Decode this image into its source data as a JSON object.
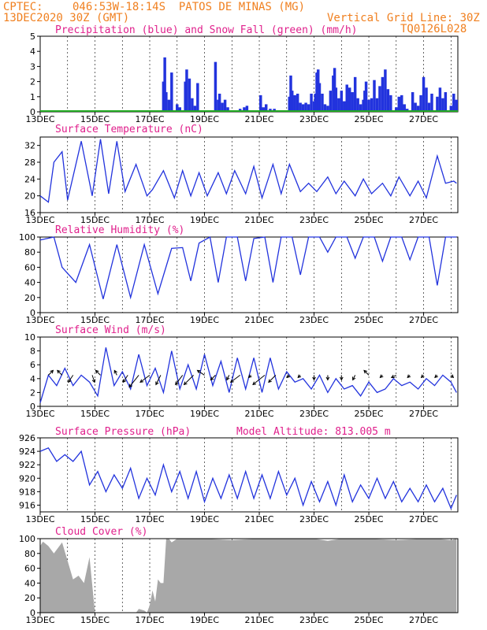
{
  "header": {
    "source": "CPTEC:",
    "location": "046:53W-18:14S  PATOS DE MINAS (MG)",
    "run": "13DEC2020 30Z (GMT)",
    "grid_note": "Vertical Grid Line: 30Z",
    "model": "TQ0126L028"
  },
  "colors": {
    "header": "#f08020",
    "title": "#e0208c",
    "line": "#2233dd",
    "precip": "#2233dd",
    "snow": "#22aa22",
    "cloud": "#a8a8a8"
  },
  "date_labels": [
    "13DEC",
    "15DEC",
    "17DEC",
    "19DEC",
    "21DEC",
    "23DEC",
    "25DEC",
    "27DEC"
  ],
  "chart_data": [
    {
      "id": "precip",
      "type": "bar",
      "title": "Precipitation (blue) and Snow Fall (green) (mm/h)",
      "ylim": [
        0,
        5
      ],
      "yticks": [
        0,
        1,
        2,
        3,
        4,
        5
      ],
      "x_start_day": 13.0,
      "x_end_day": 28.25,
      "series": [
        {
          "name": "Precipitation",
          "x": [
            17.5,
            17.55,
            17.6,
            17.7,
            17.8,
            18.0,
            18.1,
            18.3,
            18.35,
            18.45,
            18.55,
            18.65,
            18.75,
            19.4,
            19.5,
            19.55,
            19.65,
            19.75,
            19.85,
            20.3,
            20.45,
            20.55,
            21.05,
            21.15,
            21.25,
            21.4,
            21.55,
            22.1,
            22.15,
            22.2,
            22.3,
            22.4,
            22.5,
            22.6,
            22.7,
            22.8,
            22.9,
            23.0,
            23.05,
            23.1,
            23.15,
            23.2,
            23.3,
            23.4,
            23.5,
            23.6,
            23.7,
            23.75,
            23.8,
            23.9,
            24.0,
            24.1,
            24.2,
            24.3,
            24.4,
            24.5,
            24.6,
            24.7,
            24.8,
            24.85,
            24.9,
            25.0,
            25.1,
            25.2,
            25.3,
            25.4,
            25.5,
            25.6,
            25.7,
            25.8,
            26.0,
            26.1,
            26.2,
            26.3,
            26.4,
            26.6,
            26.7,
            26.8,
            26.9,
            27.0,
            27.1,
            27.2,
            27.3,
            27.5,
            27.6,
            27.7,
            27.8,
            28.0,
            28.1,
            28.2
          ],
          "values": [
            2.0,
            3.6,
            1.3,
            0.8,
            2.6,
            0.5,
            0.3,
            2.0,
            2.8,
            2.2,
            0.9,
            0.4,
            1.9,
            3.3,
            0.8,
            1.2,
            0.6,
            0.8,
            0.3,
            0.2,
            0.3,
            0.4,
            1.1,
            0.3,
            0.5,
            0.2,
            0.2,
            1.0,
            2.4,
            1.4,
            1.1,
            1.2,
            0.6,
            0.5,
            0.6,
            0.5,
            1.2,
            0.7,
            1.2,
            2.6,
            2.8,
            1.9,
            1.2,
            0.5,
            0.4,
            1.4,
            2.4,
            2.9,
            1.6,
            0.9,
            1.4,
            0.7,
            1.8,
            1.6,
            1.3,
            2.3,
            0.9,
            0.5,
            0.8,
            1.4,
            2.0,
            0.8,
            0.9,
            2.1,
            0.9,
            1.7,
            2.3,
            2.8,
            1.5,
            1.1,
            0.3,
            1.0,
            1.1,
            0.5,
            0.2,
            1.3,
            0.6,
            0.4,
            1.1,
            2.3,
            1.6,
            0.6,
            1.2,
            1.0,
            1.6,
            0.9,
            1.3,
            0.4,
            1.2,
            0.8
          ]
        },
        {
          "name": "Snow Fall",
          "x": [
            13.0,
            28.25
          ],
          "values": [
            0,
            0
          ]
        }
      ]
    },
    {
      "id": "temp",
      "type": "line",
      "title": "Surface Temperature (nC)",
      "ylim": [
        16,
        34
      ],
      "yticks": [
        16,
        20,
        24,
        28,
        32
      ],
      "x": [
        13.0,
        13.3,
        13.5,
        13.8,
        14.0,
        14.5,
        14.9,
        15.2,
        15.5,
        15.8,
        16.1,
        16.5,
        16.9,
        17.1,
        17.5,
        17.9,
        18.2,
        18.5,
        18.8,
        19.1,
        19.5,
        19.8,
        20.1,
        20.5,
        20.8,
        21.1,
        21.5,
        21.8,
        22.1,
        22.5,
        22.8,
        23.1,
        23.5,
        23.8,
        24.1,
        24.5,
        24.8,
        25.1,
        25.5,
        25.8,
        26.1,
        26.5,
        26.8,
        27.1,
        27.5,
        27.8,
        28.1,
        28.2
      ],
      "values": [
        20,
        18.5,
        28,
        30.5,
        19,
        33,
        20,
        33.5,
        20.5,
        33,
        21,
        27.5,
        20,
        21.5,
        26,
        19.5,
        26,
        20,
        25.5,
        20,
        25.5,
        20.5,
        26,
        20.5,
        27,
        19.5,
        27.5,
        20.5,
        27.5,
        21,
        23,
        21,
        24.5,
        20.5,
        23.5,
        20,
        24,
        20.5,
        23,
        20,
        24.5,
        20,
        23.5,
        19.5,
        29.5,
        23,
        23.5,
        23
      ]
    },
    {
      "id": "rh",
      "type": "line",
      "title": "Relative Humidity (%)",
      "ylim": [
        0,
        100
      ],
      "yticks": [
        0,
        20,
        40,
        60,
        80,
        100
      ],
      "x": [
        13.0,
        13.5,
        13.8,
        14.3,
        14.8,
        15.3,
        15.8,
        16.3,
        16.8,
        17.3,
        17.8,
        18.2,
        18.5,
        18.8,
        19.2,
        19.5,
        19.8,
        20.2,
        20.5,
        20.8,
        21.2,
        21.5,
        21.8,
        22.2,
        22.5,
        22.8,
        23.2,
        23.5,
        23.8,
        24.2,
        24.5,
        24.8,
        25.2,
        25.5,
        25.8,
        26.2,
        26.5,
        26.8,
        27.2,
        27.5,
        27.8,
        28.2
      ],
      "values": [
        96,
        100,
        60,
        40,
        90,
        18,
        90,
        20,
        90,
        25,
        85,
        86,
        42,
        92,
        100,
        40,
        100,
        100,
        42,
        98,
        100,
        40,
        100,
        100,
        50,
        100,
        100,
        80,
        100,
        100,
        72,
        100,
        100,
        68,
        100,
        100,
        70,
        100,
        100,
        36,
        100,
        100
      ]
    },
    {
      "id": "wind",
      "type": "line",
      "title": "Surface Wind (m/s)",
      "ylim": [
        0,
        10
      ],
      "yticks": [
        0,
        2,
        4,
        6,
        8,
        10
      ],
      "x": [
        13.0,
        13.3,
        13.6,
        13.9,
        14.2,
        14.5,
        14.8,
        15.1,
        15.4,
        15.7,
        16.0,
        16.3,
        16.6,
        16.9,
        17.2,
        17.5,
        17.8,
        18.1,
        18.4,
        18.7,
        19.0,
        19.3,
        19.6,
        19.9,
        20.2,
        20.5,
        20.8,
        21.1,
        21.4,
        21.7,
        22.0,
        22.3,
        22.6,
        22.9,
        23.2,
        23.5,
        23.8,
        24.1,
        24.4,
        24.7,
        25.0,
        25.3,
        25.6,
        25.9,
        26.2,
        26.5,
        26.8,
        27.1,
        27.4,
        27.7,
        28.0,
        28.2
      ],
      "values": [
        0.5,
        4.5,
        3.0,
        5.5,
        3.0,
        4.5,
        3.5,
        1.5,
        8.5,
        3.0,
        5.0,
        2.5,
        7.5,
        3.0,
        5.5,
        2.0,
        8.0,
        2.5,
        6.0,
        2.5,
        7.5,
        3.0,
        6.5,
        2.0,
        7.0,
        2.5,
        7.0,
        2.0,
        7.0,
        2.5,
        5.0,
        3.5,
        4.0,
        2.5,
        4.5,
        2.0,
        4.0,
        2.5,
        3.0,
        1.5,
        3.5,
        2.0,
        2.5,
        4.0,
        3.0,
        3.5,
        2.5,
        4.0,
        3.0,
        4.5,
        3.5,
        2.0
      ],
      "arrows": {
        "x": [
          13.3,
          13.8,
          14.2,
          14.9,
          15.2,
          15.8,
          16.2,
          16.6,
          17.0,
          17.4,
          18.2,
          18.6,
          19.0,
          19.4,
          19.9,
          20.3,
          20.7,
          21.2,
          21.6,
          22.1,
          22.5,
          23.0,
          23.5,
          24.0,
          24.5,
          25.0,
          25.5,
          26.0,
          26.5,
          27.0,
          27.5,
          28.0
        ],
        "u": [
          2,
          -2,
          -2,
          1,
          -2,
          -1,
          -2,
          -4,
          -4,
          -2,
          -3,
          -4,
          -3,
          -2,
          -1,
          -4,
          -1,
          -5,
          -3,
          -1,
          -1,
          0,
          0,
          0,
          -1,
          -2,
          -1,
          -2,
          -1,
          -1,
          -1,
          1
        ],
        "v": [
          2,
          2,
          -3,
          -3,
          2,
          2,
          -3,
          -5,
          -3,
          -4,
          -4,
          -4,
          2,
          -2,
          -2,
          -3,
          -1,
          -4,
          -3,
          -1,
          -1,
          -2,
          -2,
          -2,
          -2,
          2,
          -1,
          -1,
          -1,
          -1,
          -1,
          -1
        ]
      }
    },
    {
      "id": "pres",
      "type": "line",
      "title": "Surface Pressure (hPa)",
      "subtitle": "Model Altitude: 813.005 m",
      "ylim": [
        915,
        926
      ],
      "yticks": [
        916,
        918,
        920,
        922,
        924,
        926
      ],
      "x": [
        13.0,
        13.3,
        13.6,
        13.9,
        14.2,
        14.5,
        14.8,
        15.1,
        15.4,
        15.7,
        16.0,
        16.3,
        16.6,
        16.9,
        17.2,
        17.5,
        17.8,
        18.1,
        18.4,
        18.7,
        19.0,
        19.3,
        19.6,
        19.9,
        20.2,
        20.5,
        20.8,
        21.1,
        21.4,
        21.7,
        22.0,
        22.3,
        22.6,
        22.9,
        23.2,
        23.5,
        23.8,
        24.1,
        24.4,
        24.7,
        25.0,
        25.3,
        25.6,
        25.9,
        26.2,
        26.5,
        26.8,
        27.1,
        27.4,
        27.7,
        28.0,
        28.2
      ],
      "values": [
        924,
        924.5,
        922.5,
        923.5,
        922.5,
        924,
        919,
        921,
        918,
        920.5,
        918.5,
        921.5,
        917,
        920,
        917.5,
        922,
        918,
        921,
        917,
        921,
        916.5,
        920,
        917,
        920.5,
        917,
        921,
        917,
        920.5,
        917,
        921,
        917.5,
        920,
        916,
        919.5,
        916.5,
        919.5,
        916,
        920.5,
        916.5,
        919,
        917,
        920,
        917,
        919.5,
        916.5,
        918.5,
        916.5,
        919,
        916.5,
        918.5,
        915.5,
        917.5
      ]
    },
    {
      "id": "cloud",
      "type": "area",
      "title": "Cloud Cover (%)",
      "ylim": [
        0,
        100
      ],
      "yticks": [
        0,
        20,
        40,
        60,
        80,
        100
      ],
      "x": [
        13.0,
        13.1,
        13.3,
        13.5,
        13.8,
        14.0,
        14.2,
        14.4,
        14.6,
        14.8,
        15.0,
        15.5,
        16.0,
        16.5,
        16.6,
        16.8,
        16.9,
        17.0,
        17.1,
        17.2,
        17.3,
        17.4,
        17.5,
        17.6,
        17.7,
        17.8,
        18.0,
        19.0,
        20.0,
        21.0,
        22.0,
        23.0,
        23.5,
        24.0,
        25.0,
        26.0,
        27.0,
        27.5,
        28.0,
        28.2
      ],
      "values": [
        90,
        96,
        90,
        80,
        95,
        70,
        45,
        50,
        40,
        75,
        0,
        0,
        0,
        0,
        5,
        3,
        0,
        10,
        30,
        15,
        45,
        40,
        40,
        100,
        100,
        95,
        100,
        100,
        98,
        100,
        100,
        100,
        97,
        100,
        100,
        98,
        100,
        100,
        98,
        100
      ]
    }
  ]
}
